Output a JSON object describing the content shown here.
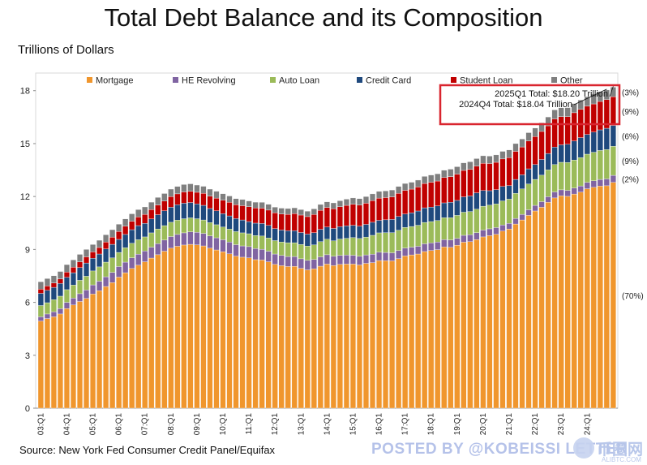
{
  "chart_data": {
    "type": "bar",
    "stacked": true,
    "title": "Total Debt Balance and its Composition",
    "ylabel": "Trillions of Dollars",
    "ylim": [
      0,
      19
    ],
    "yticks": [
      0,
      3,
      6,
      9,
      12,
      15,
      18
    ],
    "grid": false,
    "legend_position": "top",
    "x": [
      "03:Q1",
      "03:Q2",
      "03:Q3",
      "03:Q4",
      "04:Q1",
      "04:Q2",
      "04:Q3",
      "04:Q4",
      "05:Q1",
      "05:Q2",
      "05:Q3",
      "05:Q4",
      "06:Q1",
      "06:Q2",
      "06:Q3",
      "06:Q4",
      "07:Q1",
      "07:Q2",
      "07:Q3",
      "07:Q4",
      "08:Q1",
      "08:Q2",
      "08:Q3",
      "08:Q4",
      "09:Q1",
      "09:Q2",
      "09:Q3",
      "09:Q4",
      "10:Q1",
      "10:Q2",
      "10:Q3",
      "10:Q4",
      "11:Q1",
      "11:Q2",
      "11:Q3",
      "11:Q4",
      "12:Q1",
      "12:Q2",
      "12:Q3",
      "12:Q4",
      "13:Q1",
      "13:Q2",
      "13:Q3",
      "13:Q4",
      "14:Q1",
      "14:Q2",
      "14:Q3",
      "14:Q4",
      "15:Q1",
      "15:Q2",
      "15:Q3",
      "15:Q4",
      "16:Q1",
      "16:Q2",
      "16:Q3",
      "16:Q4",
      "17:Q1",
      "17:Q2",
      "17:Q3",
      "17:Q4",
      "18:Q1",
      "18:Q2",
      "18:Q3",
      "18:Q4",
      "19:Q1",
      "19:Q2",
      "19:Q3",
      "19:Q4",
      "20:Q1",
      "20:Q2",
      "20:Q3",
      "20:Q4",
      "21:Q1",
      "21:Q2",
      "21:Q3",
      "21:Q4",
      "22:Q1",
      "22:Q2",
      "22:Q3",
      "22:Q4",
      "23:Q1",
      "23:Q2",
      "23:Q3",
      "23:Q4",
      "24:Q1",
      "24:Q2",
      "24:Q3",
      "24:Q4",
      "25:Q1"
    ],
    "xtick_labels": [
      "03:Q1",
      "04:Q1",
      "05:Q1",
      "06:Q1",
      "07:Q1",
      "08:Q1",
      "09:Q1",
      "10:Q1",
      "11:Q1",
      "12:Q1",
      "13:Q1",
      "14:Q1",
      "15:Q1",
      "16:Q1",
      "17:Q1",
      "18:Q1",
      "19:Q1",
      "20:Q1",
      "21:Q1",
      "22:Q1",
      "23:Q1",
      "24:Q1"
    ],
    "series": [
      {
        "name": "Mortgage",
        "color": "#f0962d",
        "values": [
          4.94,
          5.08,
          5.18,
          5.34,
          5.65,
          5.85,
          6.05,
          6.22,
          6.47,
          6.66,
          6.9,
          7.12,
          7.43,
          7.68,
          7.92,
          8.11,
          8.3,
          8.51,
          8.7,
          8.9,
          9.07,
          9.18,
          9.25,
          9.29,
          9.26,
          9.2,
          9.07,
          8.97,
          8.87,
          8.75,
          8.62,
          8.56,
          8.52,
          8.42,
          8.4,
          8.3,
          8.15,
          8.08,
          8.03,
          8.04,
          7.93,
          7.84,
          7.9,
          8.05,
          8.17,
          8.09,
          8.15,
          8.17,
          8.17,
          8.12,
          8.21,
          8.25,
          8.37,
          8.36,
          8.35,
          8.48,
          8.63,
          8.69,
          8.74,
          8.88,
          8.94,
          8.99,
          9.14,
          9.12,
          9.24,
          9.41,
          9.44,
          9.56,
          9.71,
          9.78,
          9.86,
          10.04,
          10.16,
          10.44,
          10.67,
          10.93,
          11.18,
          11.39,
          11.67,
          11.92,
          12.04,
          12.01,
          12.14,
          12.25,
          12.44,
          12.52,
          12.59,
          12.61,
          12.8
        ]
      },
      {
        "name": "HE Revolving",
        "color": "#8064a2",
        "values": [
          0.24,
          0.26,
          0.29,
          0.31,
          0.35,
          0.39,
          0.44,
          0.48,
          0.52,
          0.54,
          0.55,
          0.58,
          0.6,
          0.6,
          0.61,
          0.62,
          0.61,
          0.62,
          0.63,
          0.63,
          0.66,
          0.67,
          0.69,
          0.71,
          0.71,
          0.71,
          0.7,
          0.69,
          0.68,
          0.67,
          0.65,
          0.64,
          0.64,
          0.63,
          0.61,
          0.6,
          0.59,
          0.58,
          0.57,
          0.56,
          0.54,
          0.54,
          0.53,
          0.53,
          0.53,
          0.52,
          0.51,
          0.51,
          0.5,
          0.49,
          0.48,
          0.48,
          0.47,
          0.47,
          0.46,
          0.46,
          0.45,
          0.44,
          0.44,
          0.44,
          0.43,
          0.43,
          0.42,
          0.42,
          0.39,
          0.39,
          0.39,
          0.39,
          0.39,
          0.39,
          0.38,
          0.35,
          0.32,
          0.32,
          0.32,
          0.32,
          0.32,
          0.32,
          0.32,
          0.34,
          0.34,
          0.34,
          0.34,
          0.35,
          0.36,
          0.37,
          0.38,
          0.39,
          0.4
        ]
      },
      {
        "name": "Auto Loan",
        "color": "#9bbb59",
        "values": [
          0.64,
          0.64,
          0.68,
          0.7,
          0.72,
          0.74,
          0.76,
          0.78,
          0.79,
          0.81,
          0.83,
          0.82,
          0.8,
          0.82,
          0.82,
          0.82,
          0.8,
          0.81,
          0.83,
          0.82,
          0.81,
          0.81,
          0.8,
          0.79,
          0.77,
          0.76,
          0.75,
          0.74,
          0.72,
          0.73,
          0.74,
          0.74,
          0.73,
          0.74,
          0.75,
          0.75,
          0.76,
          0.76,
          0.78,
          0.78,
          0.81,
          0.81,
          0.83,
          0.86,
          0.88,
          0.88,
          0.93,
          0.95,
          1.0,
          1.01,
          1.01,
          1.07,
          1.1,
          1.12,
          1.14,
          1.15,
          1.17,
          1.17,
          1.19,
          1.21,
          1.21,
          1.22,
          1.24,
          1.26,
          1.3,
          1.31,
          1.32,
          1.33,
          1.35,
          1.34,
          1.34,
          1.36,
          1.37,
          1.42,
          1.44,
          1.46,
          1.47,
          1.5,
          1.52,
          1.55,
          1.56,
          1.58,
          1.59,
          1.61,
          1.6,
          1.62,
          1.64,
          1.66,
          1.65
        ]
      },
      {
        "name": "Credit Card",
        "color": "#1f497d",
        "values": [
          0.69,
          0.7,
          0.7,
          0.72,
          0.7,
          0.7,
          0.72,
          0.75,
          0.72,
          0.73,
          0.75,
          0.77,
          0.74,
          0.75,
          0.77,
          0.8,
          0.77,
          0.79,
          0.81,
          0.84,
          0.85,
          0.87,
          0.88,
          0.87,
          0.84,
          0.83,
          0.8,
          0.79,
          0.76,
          0.75,
          0.74,
          0.73,
          0.69,
          0.7,
          0.71,
          0.71,
          0.68,
          0.68,
          0.68,
          0.68,
          0.68,
          0.68,
          0.69,
          0.7,
          0.69,
          0.7,
          0.7,
          0.71,
          0.7,
          0.7,
          0.72,
          0.74,
          0.71,
          0.73,
          0.75,
          0.78,
          0.76,
          0.78,
          0.81,
          0.83,
          0.82,
          0.83,
          0.84,
          0.87,
          0.85,
          0.87,
          0.88,
          0.93,
          0.89,
          0.82,
          0.81,
          0.82,
          0.77,
          0.79,
          0.8,
          0.86,
          0.84,
          0.89,
          0.93,
          0.99,
          0.99,
          1.03,
          1.08,
          1.13,
          1.12,
          1.14,
          1.17,
          1.21,
          1.18
        ]
      },
      {
        "name": "Student Loan",
        "color": "#c00000",
        "values": [
          0.24,
          0.25,
          0.25,
          0.26,
          0.3,
          0.31,
          0.33,
          0.35,
          0.36,
          0.37,
          0.39,
          0.41,
          0.45,
          0.47,
          0.48,
          0.49,
          0.51,
          0.53,
          0.55,
          0.55,
          0.61,
          0.62,
          0.64,
          0.64,
          0.66,
          0.68,
          0.7,
          0.72,
          0.76,
          0.77,
          0.78,
          0.81,
          0.84,
          0.86,
          0.87,
          0.87,
          0.9,
          0.91,
          0.93,
          0.97,
          0.99,
          0.99,
          1.03,
          1.08,
          1.11,
          1.12,
          1.13,
          1.16,
          1.19,
          1.19,
          1.2,
          1.23,
          1.26,
          1.26,
          1.28,
          1.31,
          1.34,
          1.34,
          1.36,
          1.38,
          1.41,
          1.41,
          1.44,
          1.46,
          1.49,
          1.5,
          1.51,
          1.51,
          1.54,
          1.54,
          1.55,
          1.56,
          1.59,
          1.59,
          1.58,
          1.58,
          1.59,
          1.59,
          1.57,
          1.6,
          1.6,
          1.57,
          1.6,
          1.6,
          1.6,
          1.6,
          1.61,
          1.62,
          1.63
        ]
      },
      {
        "name": "Other",
        "color": "#7f7f7f",
        "values": [
          0.42,
          0.42,
          0.41,
          0.42,
          0.42,
          0.42,
          0.42,
          0.42,
          0.42,
          0.41,
          0.41,
          0.42,
          0.41,
          0.41,
          0.42,
          0.42,
          0.42,
          0.42,
          0.43,
          0.43,
          0.42,
          0.42,
          0.42,
          0.42,
          0.41,
          0.4,
          0.4,
          0.39,
          0.37,
          0.36,
          0.35,
          0.35,
          0.33,
          0.33,
          0.33,
          0.33,
          0.32,
          0.33,
          0.33,
          0.33,
          0.31,
          0.31,
          0.32,
          0.33,
          0.32,
          0.33,
          0.34,
          0.35,
          0.36,
          0.37,
          0.38,
          0.38,
          0.38,
          0.38,
          0.39,
          0.39,
          0.39,
          0.39,
          0.39,
          0.4,
          0.41,
          0.41,
          0.41,
          0.42,
          0.42,
          0.43,
          0.43,
          0.43,
          0.43,
          0.42,
          0.42,
          0.43,
          0.43,
          0.44,
          0.45,
          0.47,
          0.48,
          0.49,
          0.5,
          0.51,
          0.5,
          0.51,
          0.52,
          0.53,
          0.54,
          0.55,
          0.55,
          0.55,
          0.54
        ]
      }
    ],
    "share_annotations": [
      {
        "text": "(70%)",
        "series": "Mortgage"
      },
      {
        "text": "(2%)",
        "series": "HE Revolving"
      },
      {
        "text": "(9%)",
        "series": "Auto Loan"
      },
      {
        "text": "(6%)",
        "series": "Credit Card"
      },
      {
        "text": "(9%)",
        "series": "Student Loan"
      },
      {
        "text": "(3%)",
        "series": "Other"
      }
    ],
    "callout": {
      "lines": [
        "2025Q1 Total: $18.20 Trillion",
        "2024Q4 Total: $18.04 Trillion"
      ],
      "box_color": "#d9252f"
    }
  },
  "source": "Source: New York Fed Consumer Credit Panel/Equifax",
  "watermark": {
    "text": "POSTED BY @KOBEISSI LETTER",
    "cn": "币圈网",
    "url": "ALIBTC.COM"
  }
}
